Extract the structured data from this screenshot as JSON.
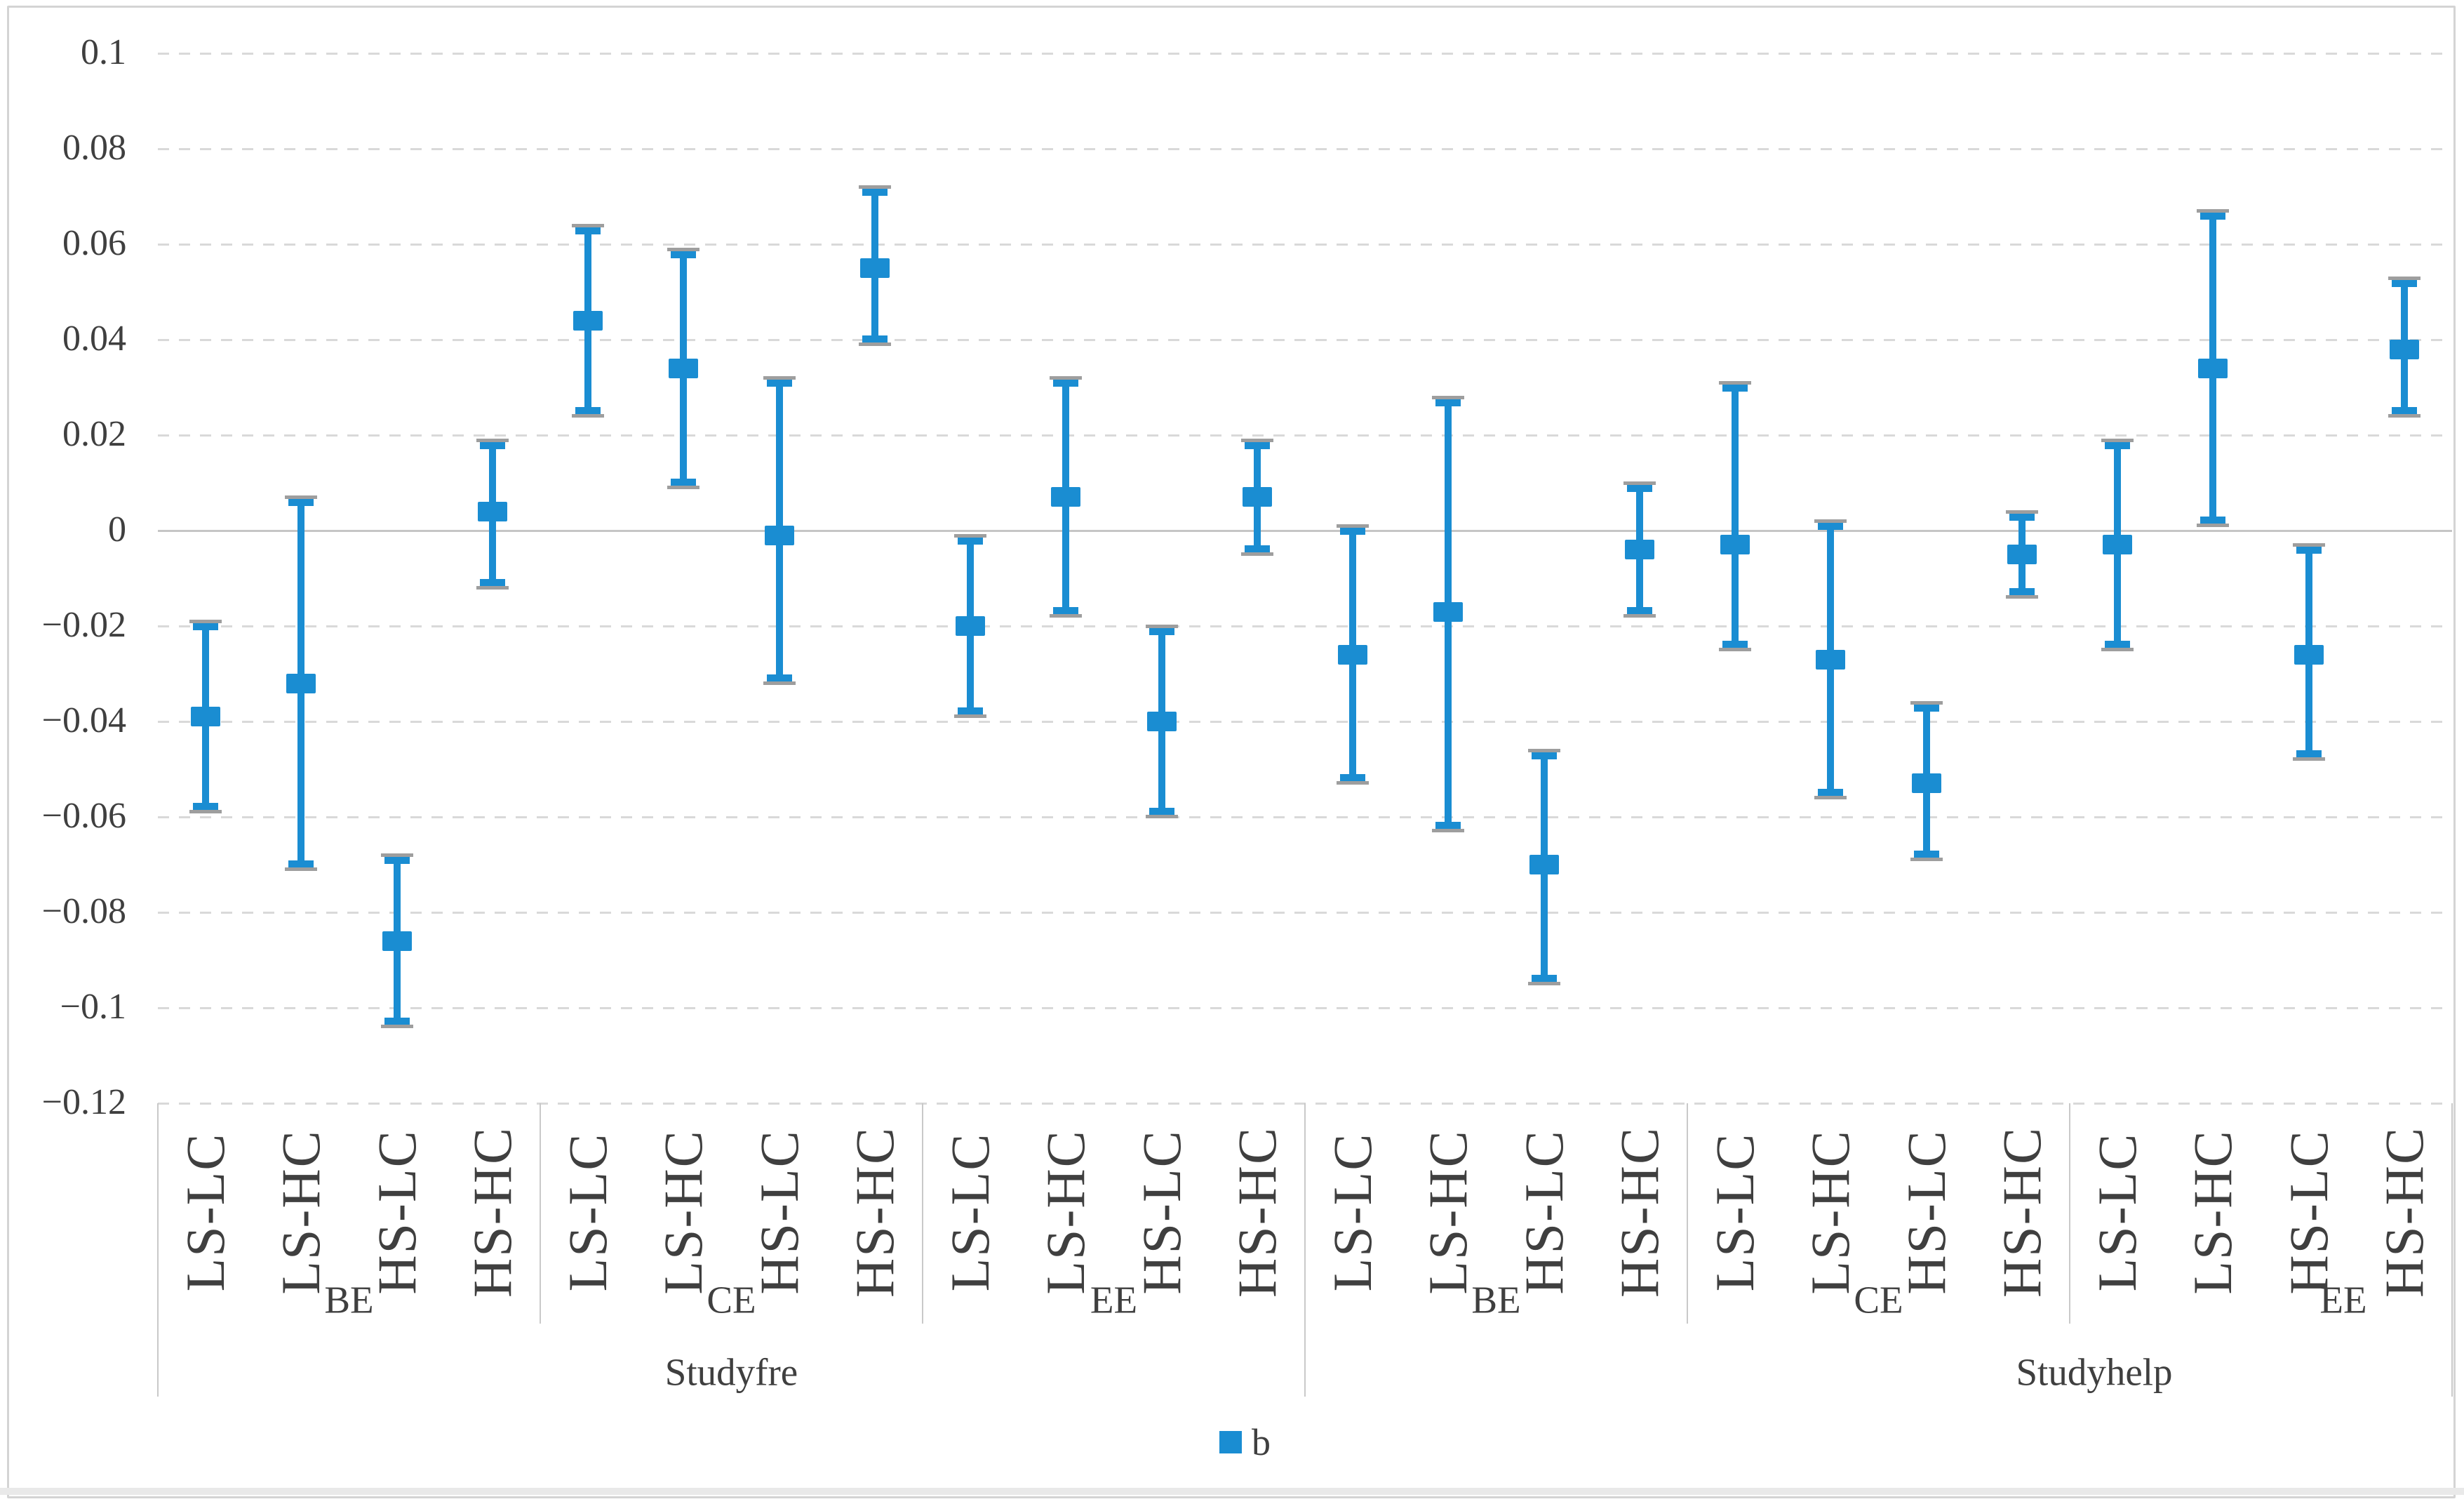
{
  "colors": {
    "marker_blue": "#1a8dd2",
    "whisker_tip_gray": "#9e9e9e",
    "gridline_gray": "#d9d9d9",
    "zero_line_gray": "#c6c6c6",
    "divider_gray": "#c9c9c9",
    "text_gray": "#3f3f3f",
    "border_gray": "#d4d4d4"
  },
  "chart_data": {
    "type": "scatter",
    "marker": "square",
    "series_name": "b",
    "title": "",
    "ylim": [
      -0.12,
      0.1
    ],
    "ytick_step": 0.02,
    "ytick_values": [
      0.1,
      0.08,
      0.06,
      0.04,
      0.02,
      0,
      -0.02,
      -0.04,
      -0.06,
      -0.08,
      -0.1,
      -0.12
    ],
    "ytick_labels": [
      "0.1",
      "0.08",
      "0.06",
      "0.04",
      "0.02",
      "0",
      "−0.02",
      "−0.04",
      "−0.06",
      "−0.08",
      "−0.1",
      "−0.12"
    ],
    "grid": "horizontal-dashed, zero line solid",
    "legend_position": "bottom-center",
    "category_levels": [
      "condition",
      "course",
      "study-variable"
    ],
    "groups": [
      {
        "label": "Studyfre",
        "subgroups": [
          {
            "label": "BE",
            "points": [
              {
                "cat": "LS-LC",
                "b": -0.039,
                "lo": -0.059,
                "hi": -0.019
              },
              {
                "cat": "LS-HC",
                "b": -0.032,
                "lo": -0.071,
                "hi": 0.007
              },
              {
                "cat": "HS-LC",
                "b": -0.086,
                "lo": -0.104,
                "hi": -0.068
              },
              {
                "cat": "HS-HC",
                "b": 0.004,
                "lo": -0.012,
                "hi": 0.019
              }
            ]
          },
          {
            "label": "CE",
            "points": [
              {
                "cat": "LS-LC",
                "b": 0.044,
                "lo": 0.024,
                "hi": 0.064
              },
              {
                "cat": "LS-HC",
                "b": 0.034,
                "lo": 0.009,
                "hi": 0.059
              },
              {
                "cat": "HS-LC",
                "b": -0.001,
                "lo": -0.032,
                "hi": 0.032
              },
              {
                "cat": "HS-HC",
                "b": 0.055,
                "lo": 0.039,
                "hi": 0.072
              }
            ]
          },
          {
            "label": "EE",
            "points": [
              {
                "cat": "LS-LC",
                "b": -0.02,
                "lo": -0.039,
                "hi": -0.001
              },
              {
                "cat": "LS-HC",
                "b": 0.007,
                "lo": -0.018,
                "hi": 0.032
              },
              {
                "cat": "HS-LC",
                "b": -0.04,
                "lo": -0.06,
                "hi": -0.02
              },
              {
                "cat": "HS-HC",
                "b": 0.007,
                "lo": -0.005,
                "hi": 0.019
              }
            ]
          }
        ]
      },
      {
        "label": "Studyhelp",
        "subgroups": [
          {
            "label": "BE",
            "points": [
              {
                "cat": "LS-LC",
                "b": -0.026,
                "lo": -0.053,
                "hi": 0.001
              },
              {
                "cat": "LS-HC",
                "b": -0.017,
                "lo": -0.063,
                "hi": 0.028
              },
              {
                "cat": "HS-LC",
                "b": -0.07,
                "lo": -0.095,
                "hi": -0.046
              },
              {
                "cat": "HS-HC",
                "b": -0.004,
                "lo": -0.018,
                "hi": 0.01
              }
            ]
          },
          {
            "label": "CE",
            "points": [
              {
                "cat": "LS-LC",
                "b": -0.003,
                "lo": -0.025,
                "hi": 0.031
              },
              {
                "cat": "LS-HC",
                "b": -0.027,
                "lo": -0.056,
                "hi": 0.002
              },
              {
                "cat": "HS-LC",
                "b": -0.053,
                "lo": -0.069,
                "hi": -0.036
              },
              {
                "cat": "HS-HC",
                "b": -0.005,
                "lo": -0.014,
                "hi": 0.004
              }
            ]
          },
          {
            "label": "EE",
            "points": [
              {
                "cat": "LS-LC",
                "b": -0.003,
                "lo": -0.025,
                "hi": 0.019
              },
              {
                "cat": "LS-HC",
                "b": 0.034,
                "lo": 0.001,
                "hi": 0.067
              },
              {
                "cat": "HS-LC",
                "b": -0.026,
                "lo": -0.048,
                "hi": -0.003
              },
              {
                "cat": "HS-HC",
                "b": 0.038,
                "lo": 0.024,
                "hi": 0.053
              }
            ]
          }
        ]
      }
    ]
  }
}
